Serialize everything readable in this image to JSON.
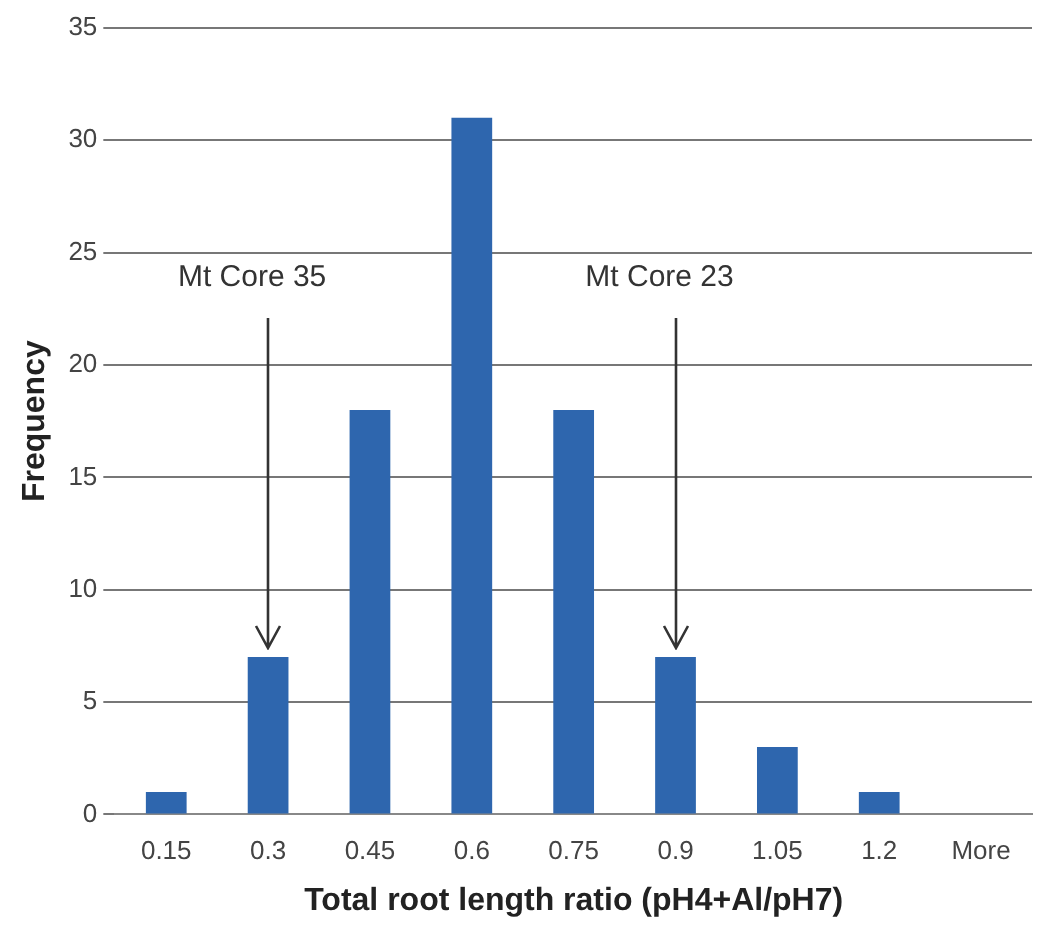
{
  "chart_data": {
    "type": "bar",
    "xlabel": "Total root length ratio (pH4+Al/pH7)",
    "ylabel": "Frequency",
    "categories": [
      "0.15",
      "0.3",
      "0.45",
      "0.6",
      "0.75",
      "0.9",
      "1.05",
      "1.2",
      "More"
    ],
    "values": [
      1,
      7,
      18,
      31,
      18,
      7,
      3,
      1,
      0
    ],
    "color": "#2e66ae",
    "ylim": [
      0,
      35
    ],
    "yticks": [
      0,
      5,
      10,
      15,
      20,
      25,
      30,
      35
    ],
    "grid": "y",
    "legend": false,
    "annotations": [
      {
        "text": "Mt Core 35",
        "x": "0.3",
        "y": 7
      },
      {
        "text": "Mt Core 23",
        "x": "0.9",
        "y": 7
      }
    ]
  }
}
